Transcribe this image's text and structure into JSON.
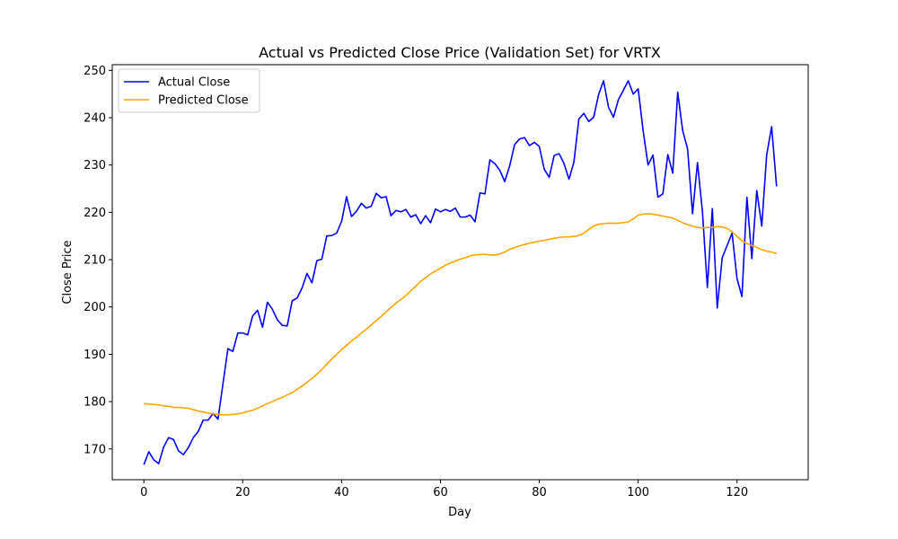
{
  "chart_data": {
    "type": "line",
    "title": "Actual vs Predicted Close Price (Validation Set) for VRTX",
    "xlabel": "Day",
    "ylabel": "Close Price",
    "xlim": [
      -6.4,
      134.4
    ],
    "ylim": [
      163.5,
      251.2
    ],
    "xticks": [
      0,
      20,
      40,
      60,
      80,
      100,
      120
    ],
    "yticks": [
      170,
      180,
      190,
      200,
      210,
      220,
      230,
      240,
      250
    ],
    "grid": false,
    "legend": "upper left",
    "series": [
      {
        "name": "Actual Close",
        "color": "#0000ff",
        "values": [
          166.7,
          169.4,
          167.7,
          166.9,
          170.4,
          172.4,
          172.0,
          169.6,
          168.8,
          170.3,
          172.4,
          173.7,
          176.1,
          176.1,
          177.5,
          176.3,
          183.8,
          191.2,
          190.6,
          194.5,
          194.5,
          194.1,
          198.1,
          199.3,
          195.7,
          201.0,
          199.5,
          197.3,
          196.1,
          196.0,
          201.3,
          201.9,
          204.0,
          207.1,
          205.1,
          209.8,
          210.1,
          215.0,
          215.1,
          215.6,
          218.1,
          223.3,
          219.1,
          220.2,
          221.9,
          220.9,
          221.3,
          224.0,
          223.1,
          223.3,
          219.3,
          220.4,
          220.1,
          220.6,
          219.0,
          219.5,
          217.6,
          219.3,
          217.8,
          220.7,
          220.1,
          220.6,
          220.2,
          220.9,
          219.0,
          219.0,
          219.4,
          218.0,
          224.1,
          223.9,
          231.1,
          230.3,
          228.9,
          226.5,
          229.8,
          234.3,
          235.5,
          235.8,
          234.1,
          234.8,
          233.9,
          229.1,
          227.4,
          232.0,
          232.4,
          230.3,
          227.0,
          230.6,
          239.7,
          240.9,
          239.2,
          240.1,
          244.9,
          247.8,
          242.2,
          240.1,
          243.8,
          245.8,
          247.8,
          245.0,
          246.1,
          237.3,
          230.0,
          232.1,
          223.2,
          223.9,
          232.2,
          228.3,
          245.4,
          237.3,
          233.4,
          219.7,
          230.5,
          220.2,
          204.1,
          220.8,
          199.8,
          210.4,
          213.0,
          215.6,
          206.0,
          202.2,
          223.2,
          210.2,
          224.6,
          217.1,
          232.1,
          238.1,
          225.5
        ]
      },
      {
        "name": "Predicted Close",
        "color": "#ffa500",
        "values": [
          179.6,
          179.5,
          179.4,
          179.3,
          179.1,
          179.0,
          178.8,
          178.8,
          178.7,
          178.6,
          178.3,
          178.0,
          177.8,
          177.6,
          177.4,
          177.3,
          177.2,
          177.2,
          177.3,
          177.4,
          177.6,
          177.9,
          178.2,
          178.6,
          179.1,
          179.6,
          180.0,
          180.5,
          180.9,
          181.4,
          181.9,
          182.6,
          183.3,
          184.1,
          184.9,
          185.8,
          186.8,
          187.9,
          189.0,
          190.0,
          191.0,
          191.9,
          192.8,
          193.6,
          194.5,
          195.3,
          196.2,
          197.1,
          198.0,
          199.0,
          199.9,
          200.8,
          201.6,
          202.4,
          203.4,
          204.4,
          205.4,
          206.2,
          207.0,
          207.6,
          208.2,
          208.8,
          209.3,
          209.7,
          210.1,
          210.4,
          210.8,
          211.0,
          211.1,
          211.1,
          211.0,
          211.0,
          211.2,
          211.6,
          212.2,
          212.6,
          212.9,
          213.2,
          213.5,
          213.7,
          213.9,
          214.1,
          214.3,
          214.5,
          214.7,
          214.8,
          214.8,
          214.9,
          215.1,
          215.6,
          216.4,
          217.1,
          217.5,
          217.6,
          217.7,
          217.7,
          217.7,
          217.8,
          218.0,
          218.6,
          219.4,
          219.6,
          219.7,
          219.6,
          219.4,
          219.2,
          219.0,
          218.8,
          218.3,
          217.8,
          217.4,
          217.1,
          216.8,
          216.7,
          216.8,
          216.8,
          217.0,
          216.9,
          216.6,
          215.9,
          214.9,
          214.0,
          213.4,
          213.0,
          212.6,
          212.1,
          211.8,
          211.6,
          211.3
        ]
      }
    ]
  }
}
